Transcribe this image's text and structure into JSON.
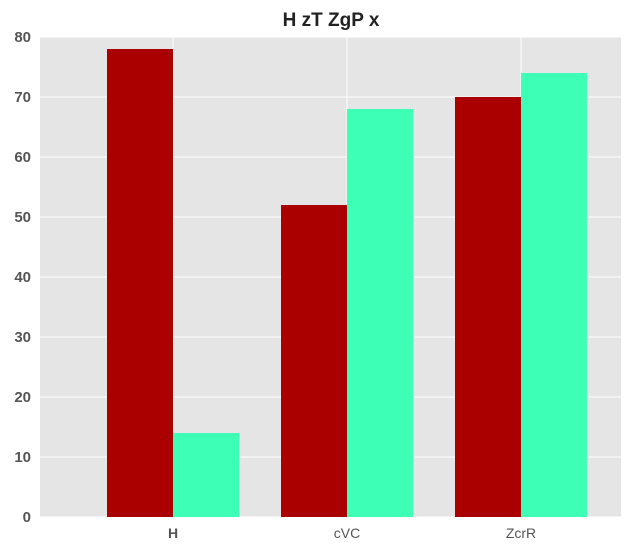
{
  "chart_data": {
    "type": "bar",
    "title": "H zT  ZgP  x",
    "xlabel": "",
    "ylabel": "",
    "categories": [
      "H",
      "cVC",
      "ZcrR"
    ],
    "series": [
      {
        "values": [
          78,
          52,
          70
        ]
      },
      {
        "values": [
          14,
          68,
          74
        ]
      }
    ],
    "ylim": [
      0,
      80
    ],
    "yticks": [
      "0",
      "10",
      "20",
      "30",
      "40",
      "50",
      "60",
      "70",
      "80"
    ],
    "grid": true,
    "legend": "none"
  },
  "colors": {
    "series": [
      "#aa0000",
      "#3dffb5"
    ],
    "background": "#e5e5e5",
    "grid": "#ffffff"
  }
}
